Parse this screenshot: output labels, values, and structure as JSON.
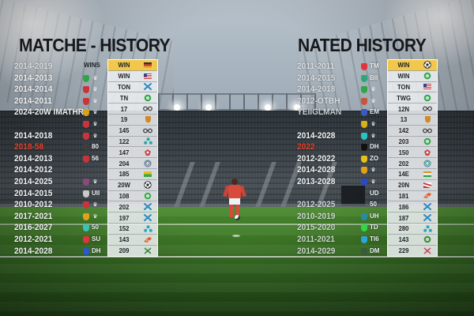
{
  "left_panel": {
    "title": "MATCHE - HISTORY",
    "column_header": "WINS",
    "rows": [
      {
        "years": "2014-2019",
        "style": "faded",
        "badge_color": "",
        "abbr": "",
        "value": "WIN",
        "icon": "flag-stripes",
        "icon_color": "#2d2d2d",
        "head": true
      },
      {
        "years": "2014-2013",
        "style": "normal",
        "badge_color": "#2fa54a",
        "abbr": "",
        "value": "WIN",
        "icon": "flag-usa",
        "icon_color": "#c8343a"
      },
      {
        "years": "2014-2014",
        "style": "normal",
        "badge_color": "#c8343a",
        "abbr": "",
        "value": "TON",
        "icon": "cross-x",
        "icon_color": "#2a8ac2"
      },
      {
        "years": "2014-2011",
        "style": "normal",
        "badge_color": "#c8343a",
        "abbr": "",
        "value": "TN",
        "icon": "crest-round",
        "icon_color": "#2fa54a"
      },
      {
        "years": "2024-20W IMATHRS",
        "style": "normal",
        "badge_color": "#d6a21a",
        "abbr": "",
        "value": "17",
        "icon": "glasses",
        "icon_color": "#333333"
      },
      {
        "years": "",
        "style": "normal",
        "badge_color": "#c8343a",
        "abbr": "",
        "value": "19",
        "icon": "crest-shield",
        "icon_color": "#d08a2a"
      },
      {
        "years": "2014-2018",
        "style": "normal",
        "badge_color": "#c8343a",
        "abbr": "",
        "value": "145",
        "icon": "glasses",
        "icon_color": "#333333"
      },
      {
        "years": "2018-58",
        "style": "red",
        "badge_color": "#3d3d3d",
        "abbr": "80",
        "value": "122",
        "icon": "tri-dots",
        "icon_color": "#2aa5a0"
      },
      {
        "years": "2014-2013",
        "style": "normal",
        "badge_color": "#c8343a",
        "abbr": "56",
        "value": "147",
        "icon": "crest-red",
        "icon_color": "#c8343a"
      },
      {
        "years": "2014-2012",
        "style": "normal",
        "badge_color": "",
        "abbr": "",
        "value": "204",
        "icon": "ball-outline",
        "icon_color": "#4a6a8a"
      },
      {
        "years": "2014-2025",
        "style": "normal",
        "badge_color": "#8a4a7a",
        "abbr": "",
        "value": "185",
        "icon": "flag-green-yellow",
        "icon_color": "#3aa84a"
      },
      {
        "years": "2014-2015",
        "style": "normal",
        "badge_color": "#c9c9c9",
        "abbr": "UII",
        "value": "20W",
        "icon": "ball",
        "icon_color": "#1e2327"
      },
      {
        "years": "2010-2012",
        "style": "normal",
        "badge_color": "#c8343a",
        "abbr": "",
        "value": "108",
        "icon": "crest-round",
        "icon_color": "#3aa84a"
      },
      {
        "years": "2017-2021",
        "style": "normal",
        "badge_color": "#e0a21a",
        "abbr": "",
        "value": "202",
        "icon": "cross-x",
        "icon_color": "#2a8ac2"
      },
      {
        "years": "2016-2027",
        "style": "normal",
        "badge_color": "#3ac2b2",
        "abbr": "50",
        "value": "197",
        "icon": "cross-x",
        "icon_color": "#2a8ac2"
      },
      {
        "years": "2012-2021",
        "style": "normal",
        "badge_color": "#e0343a",
        "abbr": "SU",
        "value": "152",
        "icon": "tri-dots",
        "icon_color": "#2aa5c0"
      },
      {
        "years": "2014-2028",
        "style": "normal",
        "badge_color": "#2a5ac2",
        "abbr": "DH",
        "value": "143",
        "icon": "boot",
        "icon_color": "#e0602a"
      },
      {
        "years": "",
        "style": "normal",
        "badge_color": "",
        "abbr": "",
        "value": "209",
        "icon": "cross-swords",
        "icon_color": "#3a8a3a"
      }
    ]
  },
  "right_panel": {
    "title": "NATED HISTORY",
    "rows": [
      {
        "years": "2011-2011",
        "style": "faded",
        "badge_color": "#e0343a",
        "abbr": "TM",
        "value": "WIN",
        "icon": "ball",
        "icon_color": "#1e2327",
        "head": true
      },
      {
        "years": "2014-2015",
        "style": "faded",
        "badge_color": "#2fa57a",
        "abbr": "BII",
        "value": "WIN",
        "icon": "crest-round",
        "icon_color": "#2fa54a"
      },
      {
        "years": "2014-2018",
        "style": "faded",
        "badge_color": "#2fa54a",
        "abbr": "",
        "value": "TON",
        "icon": "flag-usa",
        "icon_color": "#c8343a"
      },
      {
        "years": "2012-OTBH",
        "style": "faded",
        "badge_color": "#c8543a",
        "abbr": "",
        "value": "TWG",
        "icon": "crest-round",
        "icon_color": "#2fa54a"
      },
      {
        "years": "YEIIGLMAN",
        "style": "faded",
        "badge_color": "#3a5ac2",
        "abbr": "EM",
        "value": "12N",
        "icon": "glasses",
        "icon_color": "#333333"
      },
      {
        "years": "",
        "style": "normal",
        "badge_color": "#d6b21a",
        "abbr": "",
        "value": "13",
        "icon": "crest-shield",
        "icon_color": "#d08a2a"
      },
      {
        "years": "2014-2028",
        "style": "normal",
        "badge_color": "#2ac2c2",
        "abbr": "",
        "value": "142",
        "icon": "glasses",
        "icon_color": "#333333"
      },
      {
        "years": "2022",
        "style": "red",
        "badge_color": "#111111",
        "abbr": "DH",
        "value": "203",
        "icon": "crest-round",
        "icon_color": "#2fa54a"
      },
      {
        "years": "2012-2022",
        "style": "normal",
        "badge_color": "#e0c21a",
        "abbr": "ZO",
        "value": "150",
        "icon": "crest-red",
        "icon_color": "#c8343a"
      },
      {
        "years": "2014-2028",
        "style": "normal",
        "badge_color": "#e0a21a",
        "abbr": "",
        "value": "202",
        "icon": "ball-outline",
        "icon_color": "#2a8a8a"
      },
      {
        "years": "2013-2028",
        "style": "normal",
        "badge_color": "#2a4ac2",
        "abbr": "",
        "value": "14E",
        "icon": "flag-india",
        "icon_color": "#e0902a"
      },
      {
        "years": "",
        "style": "normal",
        "badge_color": "",
        "abbr": "UD",
        "value": "20N",
        "icon": "flag-red",
        "icon_color": "#c8343a"
      },
      {
        "years": "2012-2025",
        "style": "faded",
        "badge_color": "",
        "abbr": "50",
        "value": "181",
        "icon": "boot",
        "icon_color": "#e0602a"
      },
      {
        "years": "2010-2019",
        "style": "faded",
        "badge_color": "#2a8aa2",
        "abbr": "UH",
        "value": "186",
        "icon": "cross-x",
        "icon_color": "#2a8ac2"
      },
      {
        "years": "2015-2020",
        "style": "faded",
        "badge_color": "#2fd54a",
        "abbr": "TD",
        "value": "187",
        "icon": "cross-x",
        "icon_color": "#2a8ac2"
      },
      {
        "years": "2011-2021",
        "style": "faded",
        "badge_color": "#2aa5d5",
        "abbr": "TI6",
        "value": "280",
        "icon": "tri-dots",
        "icon_color": "#2aa5c0"
      },
      {
        "years": "2014-2029",
        "style": "faded",
        "badge_color": "#3a5a3a",
        "abbr": "DM",
        "value": "143",
        "icon": "crest-round",
        "icon_color": "#3a8a3a"
      },
      {
        "years": "",
        "style": "normal",
        "badge_color": "",
        "abbr": "",
        "value": "229",
        "icon": "cross-swords",
        "icon_color": "#c84a5a"
      }
    ]
  },
  "colors": {
    "title": "#16191c",
    "header_row": "#f1c84b",
    "table_bg": "#eceef0",
    "year_text": "#f2f4f5",
    "year_highlight": "#e0452f",
    "pitch": "#3f7a28",
    "sky": "#aab6c0"
  }
}
